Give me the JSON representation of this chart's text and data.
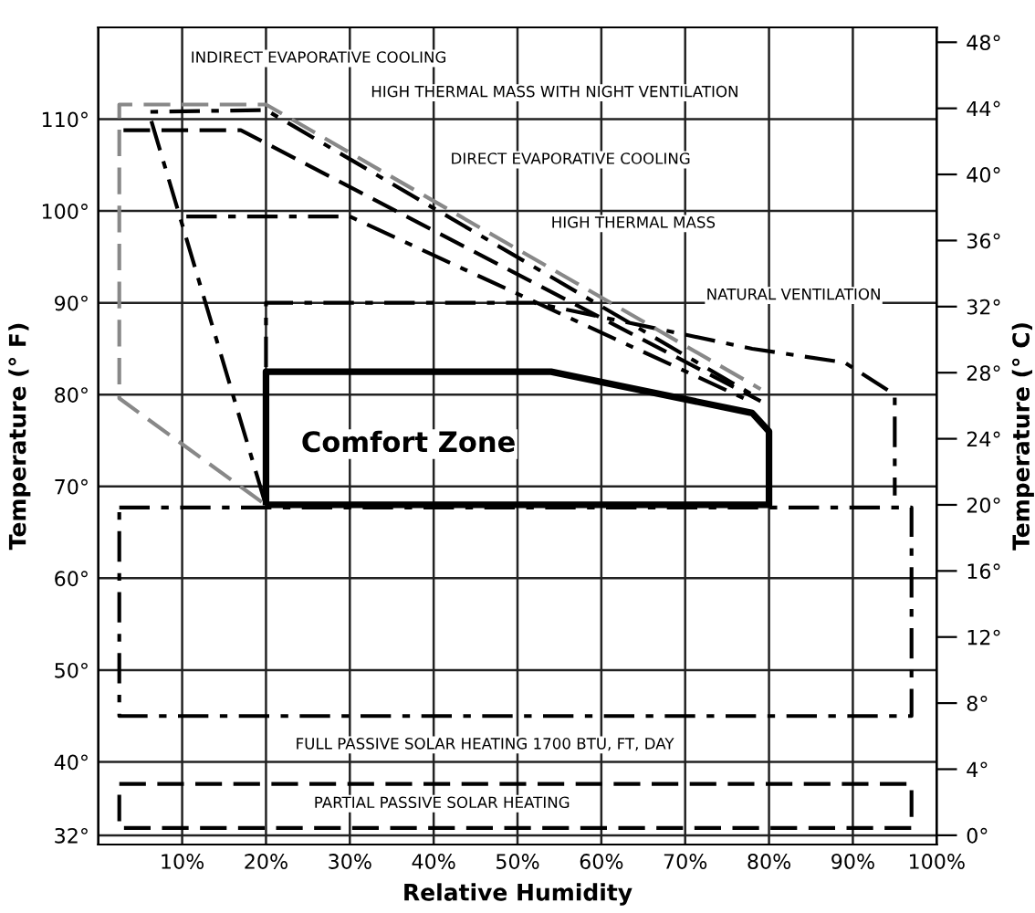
{
  "chart_data": {
    "type": "line",
    "xlabel": "Relative Humidity",
    "ylabel": "Temperature (° F)",
    "y2label": "Temperature (° C)",
    "xlim": [
      0,
      100
    ],
    "xticks": [
      {
        "value": 10,
        "label": "10%"
      },
      {
        "value": 20,
        "label": "20%"
      },
      {
        "value": 30,
        "label": "30%"
      },
      {
        "value": 40,
        "label": "40%"
      },
      {
        "value": 50,
        "label": "50%"
      },
      {
        "value": 60,
        "label": "60%"
      },
      {
        "value": 70,
        "label": "70%"
      },
      {
        "value": 80,
        "label": "80%"
      },
      {
        "value": 90,
        "label": "90%"
      },
      {
        "value": 100,
        "label": "100%"
      }
    ],
    "ylim": [
      31,
      120
    ],
    "yticks": [
      {
        "value": 32,
        "label": "32°"
      },
      {
        "value": 40,
        "label": "40°"
      },
      {
        "value": 50,
        "label": "50°"
      },
      {
        "value": 60,
        "label": "60°"
      },
      {
        "value": 70,
        "label": "70°"
      },
      {
        "value": 80,
        "label": "80°"
      },
      {
        "value": 90,
        "label": "90°"
      },
      {
        "value": 100,
        "label": "100°"
      },
      {
        "value": 110,
        "label": "110°"
      }
    ],
    "y2lim": [
      -0.56,
      48.9
    ],
    "y2ticks": [
      {
        "value": 0,
        "label": "0°"
      },
      {
        "value": 4,
        "label": "4°"
      },
      {
        "value": 8,
        "label": "8°"
      },
      {
        "value": 12,
        "label": "12°"
      },
      {
        "value": 16,
        "label": "16°"
      },
      {
        "value": 20,
        "label": "20°"
      },
      {
        "value": 24,
        "label": "24°"
      },
      {
        "value": 28,
        "label": "28°"
      },
      {
        "value": 32,
        "label": "32°"
      },
      {
        "value": 36,
        "label": "36°"
      },
      {
        "value": 40,
        "label": "40°"
      },
      {
        "value": 44,
        "label": "44°"
      },
      {
        "value": 48,
        "label": "48°"
      }
    ],
    "grid": true,
    "marker": "none",
    "series": [
      {
        "color": "#000000",
        "line_style": "solid",
        "x": [
          20,
          20,
          54,
          78,
          80,
          80,
          20.3
        ],
        "values": [
          68.3,
          82.5,
          82.5,
          78,
          76,
          68,
          68
        ]
      },
      {
        "color": "#000000",
        "line_style": "dashdot",
        "x": [
          20,
          20,
          52,
          78,
          89,
          95,
          95
        ],
        "values": [
          83,
          90,
          90,
          85,
          83.5,
          80,
          69
        ]
      },
      {
        "color": "#888888",
        "line_style": "dashed",
        "x": [
          19.5,
          2.5,
          2.5,
          20,
          79
        ],
        "values": [
          68.3,
          79.6,
          111.6,
          111.6,
          80.6
        ]
      },
      {
        "color": "#000000",
        "line_style": "dashdot",
        "x": [
          19.8,
          6,
          20,
          78
        ],
        "values": [
          68.5,
          110.8,
          111,
          80
        ]
      },
      {
        "color": "#000000",
        "line_style": "dashed",
        "x": [
          3,
          17,
          79
        ],
        "values": [
          108.8,
          108.8,
          79.3
        ]
      },
      {
        "color": "#000000",
        "line_style": "dashdot",
        "x": [
          10.5,
          30,
          77
        ],
        "values": [
          99.4,
          99.4,
          79.6
        ]
      },
      {
        "color": "#000000",
        "line_style": "dashdot",
        "x": [
          2.5,
          97,
          97,
          2.5,
          2.5
        ],
        "values": [
          67.7,
          67.7,
          45,
          45,
          67.2
        ]
      },
      {
        "color": "#000000",
        "line_style": "dashed",
        "x": [
          2.5,
          97,
          97,
          2.5,
          2.5
        ],
        "values": [
          37.6,
          37.6,
          32.8,
          32.8,
          37.1
        ]
      }
    ],
    "annotations": [
      "INDIRECT EVAPORATIVE COOLING",
      "HIGH THERMAL MASS WITH NIGHT VENTILATION",
      "DIRECT EVAPORATIVE COOLING",
      "HIGH THERMAL MASS",
      "NATURAL VENTILATION",
      "Comfort Zone",
      "FULL PASSIVE SOLAR HEATING 1700 BTU, FT, DAY",
      "PARTIAL PASSIVE SOLAR HEATING"
    ]
  }
}
